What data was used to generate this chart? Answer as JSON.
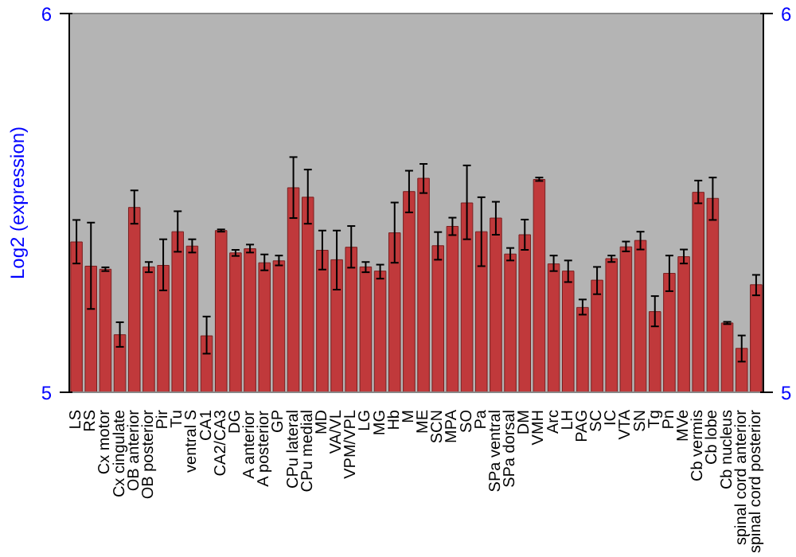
{
  "chart_data": {
    "type": "bar",
    "ylabel": "Log2 (expression)",
    "categories": [
      "LS",
      "RS",
      "Cx motor",
      "Cx cingulate",
      "OB anterior",
      "OB posterior",
      "Pir",
      "Tu",
      "ventral S",
      "CA1",
      "CA2/CA3",
      "DG",
      "A anterior",
      "A posterior",
      "GP",
      "CPu lateral",
      "CPu medial",
      "MD",
      "VA/VL",
      "VPM/VPL",
      "LG",
      "MG",
      "Hb",
      "M",
      "ME",
      "SCN",
      "MPA",
      "SO",
      "Pa",
      "SPa ventral",
      "SPa dorsal",
      "DM",
      "VMH",
      "Arc",
      "LH",
      "PAG",
      "SC",
      "IC",
      "VTA",
      "SN",
      "Tg",
      "Pn",
      "MVe",
      "Cb vermis",
      "Cb lobe",
      "Cb nucleus",
      "spinal cord anterior",
      "spinal cord posterior"
    ],
    "values": [
      5.397,
      5.333,
      5.325,
      5.152,
      5.488,
      5.331,
      5.335,
      5.424,
      5.386,
      5.149,
      5.427,
      5.368,
      5.379,
      5.342,
      5.347,
      5.54,
      5.515,
      5.375,
      5.35,
      5.383,
      5.331,
      5.32,
      5.421,
      5.53,
      5.565,
      5.387,
      5.438,
      5.5,
      5.424,
      5.46,
      5.365,
      5.416,
      5.562,
      5.339,
      5.32,
      5.224,
      5.296,
      5.353,
      5.384,
      5.401,
      5.213,
      5.314,
      5.358,
      5.528,
      5.512,
      5.183,
      5.116,
      5.284
    ],
    "errors": [
      [
        5.34,
        5.455
      ],
      [
        5.22,
        5.448
      ],
      [
        5.32,
        5.33
      ],
      [
        5.12,
        5.185
      ],
      [
        5.445,
        5.533
      ],
      [
        5.317,
        5.344
      ],
      [
        5.269,
        5.404
      ],
      [
        5.371,
        5.478
      ],
      [
        5.369,
        5.404
      ],
      [
        5.102,
        5.2
      ],
      [
        5.424,
        5.43
      ],
      [
        5.36,
        5.376
      ],
      [
        5.369,
        5.39
      ],
      [
        5.322,
        5.364
      ],
      [
        5.335,
        5.361
      ],
      [
        5.46,
        5.621
      ],
      [
        5.445,
        5.588
      ],
      [
        5.324,
        5.427
      ],
      [
        5.271,
        5.427
      ],
      [
        5.329,
        5.439
      ],
      [
        5.317,
        5.344
      ],
      [
        5.3,
        5.337
      ],
      [
        5.342,
        5.501
      ],
      [
        5.475,
        5.585
      ],
      [
        5.526,
        5.603
      ],
      [
        5.35,
        5.423
      ],
      [
        5.415,
        5.461
      ],
      [
        5.404,
        5.599
      ],
      [
        5.333,
        5.515
      ],
      [
        5.416,
        5.503
      ],
      [
        5.348,
        5.381
      ],
      [
        5.376,
        5.456
      ],
      [
        5.558,
        5.567
      ],
      [
        5.32,
        5.361
      ],
      [
        5.291,
        5.348
      ],
      [
        5.205,
        5.245
      ],
      [
        5.259,
        5.331
      ],
      [
        5.344,
        5.361
      ],
      [
        5.372,
        5.398
      ],
      [
        5.377,
        5.424
      ],
      [
        5.174,
        5.254
      ],
      [
        5.267,
        5.361
      ],
      [
        5.34,
        5.377
      ],
      [
        5.499,
        5.559
      ],
      [
        5.455,
        5.567
      ],
      [
        5.18,
        5.186
      ],
      [
        5.081,
        5.15
      ],
      [
        5.256,
        5.31
      ]
    ],
    "color": "#c0393b",
    "ylim": [
      5,
      6
    ],
    "yticks": [
      5,
      6
    ],
    "y2lim": [
      5,
      6
    ],
    "y2ticks": [
      5,
      6
    ],
    "grid": false
  }
}
